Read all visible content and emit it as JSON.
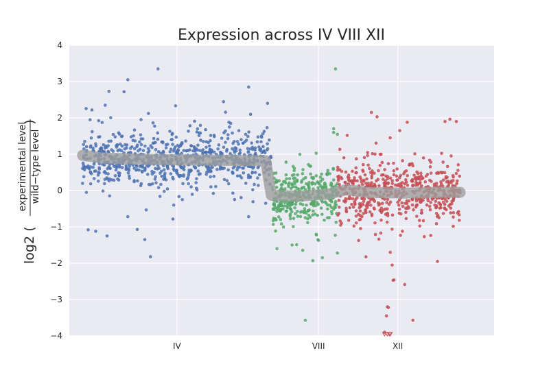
{
  "chart_data": {
    "type": "scatter",
    "title": "Expression across IV VIII XII",
    "ylabel": {
      "prefix": "log2",
      "numerator": "experimental level",
      "denominator": "wild−type level"
    },
    "xlabel": "",
    "ylim": [
      -4,
      4
    ],
    "yticks": [
      "4",
      "3",
      "2",
      "1",
      "0",
      "−1",
      "−2",
      "−3",
      "−4"
    ],
    "grid": true,
    "categories": [
      "IV",
      "VIII",
      "XII"
    ],
    "colors": {
      "IV": "#4c72b0",
      "VIII": "#55a868",
      "XII": "#c44e52",
      "trend": "#9e9e9e",
      "background": "#eaeaf2"
    },
    "series": [
      {
        "category": "IV",
        "x_range": [
          0,
          1.0
        ],
        "n_points": 800,
        "median": 0.86,
        "spread": 0.33,
        "outliers": [
          [
            0.4,
            3.35
          ],
          [
            0.24,
            3.05
          ],
          [
            0.22,
            2.72
          ],
          [
            0.14,
            2.73
          ],
          [
            0.88,
            2.85
          ],
          [
            0.12,
            2.35
          ],
          [
            0.05,
            2.22
          ],
          [
            0.89,
            2.1
          ],
          [
            0.98,
            2.4
          ],
          [
            0.04,
            1.95
          ],
          [
            0.33,
            -1.35
          ],
          [
            0.36,
            -1.82
          ],
          [
            0.03,
            -1.08
          ],
          [
            0.07,
            -1.12
          ],
          [
            0.24,
            -0.72
          ],
          [
            0.29,
            -1.07
          ],
          [
            0.88,
            -0.72
          ],
          [
            0.13,
            -1.25
          ],
          [
            0.97,
            -0.35
          ]
        ]
      },
      {
        "category": "VIII",
        "x_range": [
          1.0,
          1.35
        ],
        "n_points": 360,
        "median": -0.15,
        "spread": 0.38,
        "outliers": [
          [
            1.34,
            3.35
          ],
          [
            1.18,
            -3.57
          ],
          [
            1.22,
            -1.93
          ],
          [
            1.35,
            -1.72
          ],
          [
            1.03,
            -1.6
          ],
          [
            1.11,
            -1.5
          ],
          [
            1.25,
            -1.37
          ],
          [
            1.33,
            1.6
          ],
          [
            1.35,
            1.55
          ]
        ]
      },
      {
        "category": "XII",
        "x_range": [
          1.35,
          2.0
        ],
        "n_points": 560,
        "median": -0.05,
        "spread": 0.4,
        "outliers": [
          [
            1.53,
            2.15
          ],
          [
            1.56,
            2.03
          ],
          [
            1.92,
            1.9
          ],
          [
            1.72,
            1.88
          ],
          [
            1.98,
            1.9
          ],
          [
            1.68,
            1.65
          ],
          [
            1.75,
            -3.57
          ],
          [
            1.58,
            -1.17
          ],
          [
            1.81,
            -1.27
          ],
          [
            1.88,
            -1.95
          ],
          [
            1.63,
            -1.7
          ],
          [
            1.64,
            -2.05
          ],
          [
            1.645,
            -2.47
          ],
          [
            1.65,
            -2.46
          ],
          [
            1.615,
            -3.2
          ],
          [
            1.62,
            -3.22
          ],
          [
            1.61,
            -3.45
          ],
          [
            1.6,
            -3.9
          ],
          [
            1.615,
            -3.92
          ],
          [
            1.63,
            -3.93
          ],
          [
            1.6,
            -3.96
          ],
          [
            1.625,
            -3.98
          ]
        ]
      }
    ],
    "trend_line": [
      [
        0,
        0.97
      ],
      [
        0.1,
        0.9
      ],
      [
        0.3,
        0.86
      ],
      [
        0.6,
        0.84
      ],
      [
        0.8,
        0.83
      ],
      [
        0.97,
        0.82
      ],
      [
        1.0,
        -0.13
      ],
      [
        1.15,
        -0.15
      ],
      [
        1.3,
        -0.1
      ],
      [
        1.4,
        0.03
      ],
      [
        1.5,
        -0.05
      ],
      [
        1.7,
        -0.07
      ],
      [
        1.9,
        -0.05
      ],
      [
        2.0,
        -0.05
      ]
    ]
  }
}
